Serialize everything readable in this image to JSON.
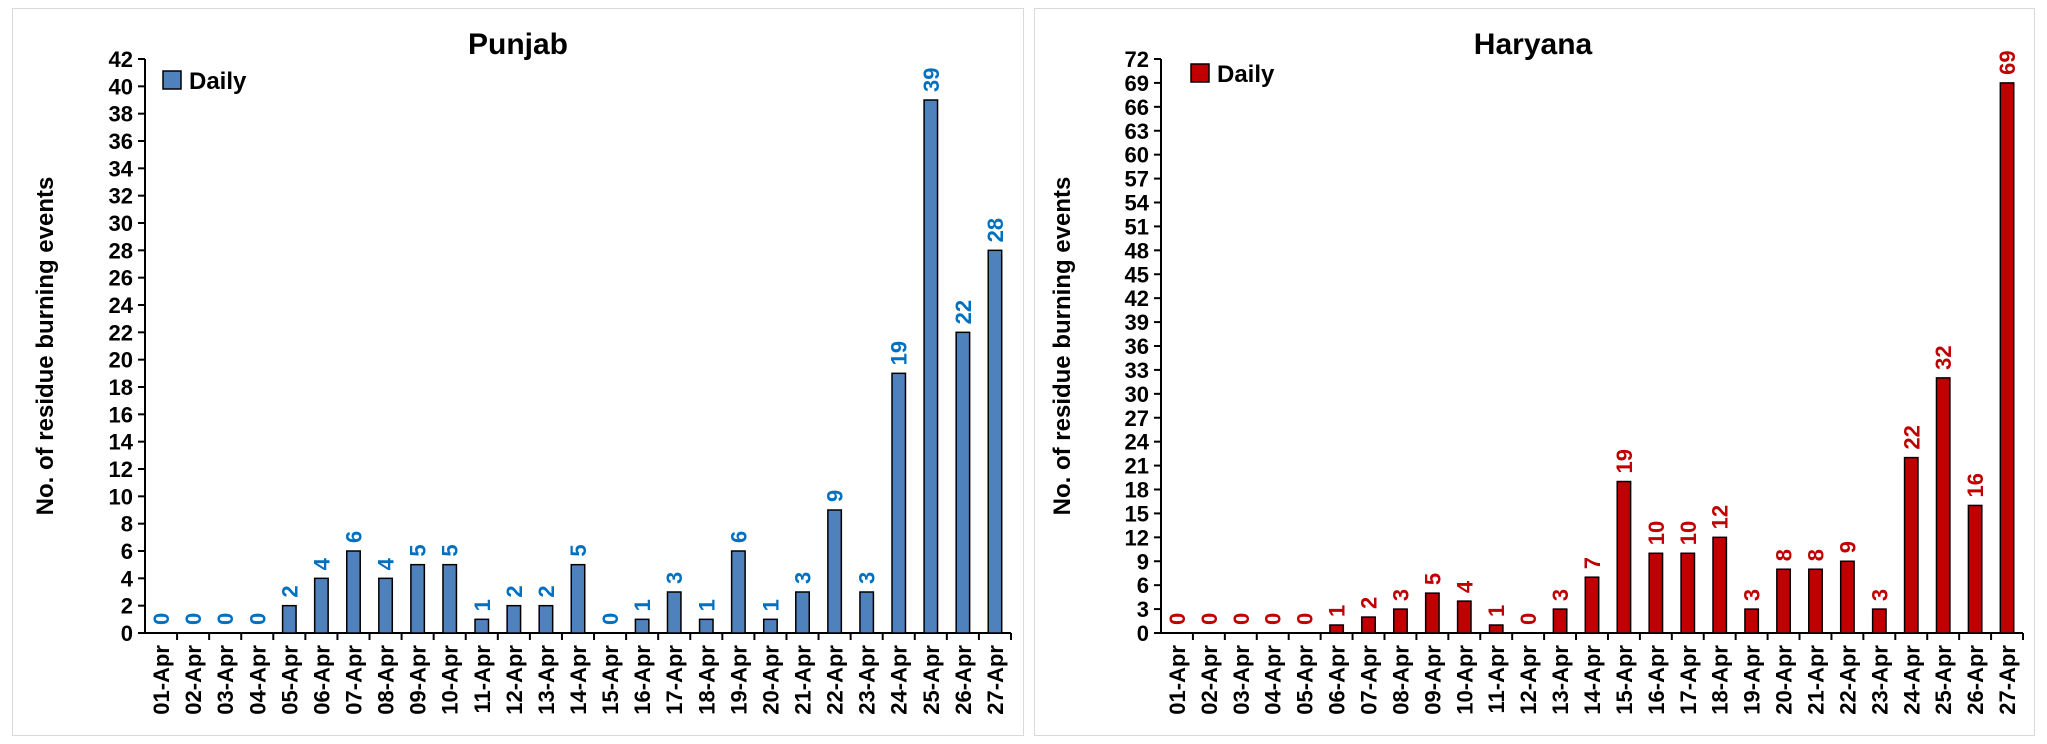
{
  "chart_data": [
    {
      "type": "bar",
      "title": "Punjab",
      "ylabel": "No. of residue burning events",
      "xlabel": "",
      "ylim": [
        0,
        42
      ],
      "ytick_step": 2,
      "categories": [
        "01-Apr",
        "02-Apr",
        "03-Apr",
        "04-Apr",
        "05-Apr",
        "06-Apr",
        "07-Apr",
        "08-Apr",
        "09-Apr",
        "10-Apr",
        "11-Apr",
        "12-Apr",
        "13-Apr",
        "14-Apr",
        "15-Apr",
        "16-Apr",
        "17-Apr",
        "18-Apr",
        "19-Apr",
        "20-Apr",
        "21-Apr",
        "22-Apr",
        "23-Apr",
        "24-Apr",
        "25-Apr",
        "26-Apr",
        "27-Apr"
      ],
      "series": [
        {
          "name": "Daily",
          "values": [
            0,
            0,
            0,
            0,
            2,
            4,
            6,
            4,
            5,
            5,
            1,
            2,
            2,
            5,
            0,
            1,
            3,
            1,
            6,
            1,
            3,
            9,
            3,
            19,
            39,
            22,
            28
          ]
        }
      ],
      "legend": "top-left",
      "bar_color": "#4f81bd",
      "label_color": "#0070c0",
      "grid": false
    },
    {
      "type": "bar",
      "title": "Haryana",
      "ylabel": "No. of residue burning events",
      "xlabel": "",
      "ylim": [
        0,
        72
      ],
      "ytick_step": 3,
      "categories": [
        "01-Apr",
        "02-Apr",
        "03-Apr",
        "04-Apr",
        "05-Apr",
        "06-Apr",
        "07-Apr",
        "08-Apr",
        "09-Apr",
        "10-Apr",
        "11-Apr",
        "12-Apr",
        "13-Apr",
        "14-Apr",
        "15-Apr",
        "16-Apr",
        "17-Apr",
        "18-Apr",
        "19-Apr",
        "20-Apr",
        "21-Apr",
        "22-Apr",
        "23-Apr",
        "24-Apr",
        "25-Apr",
        "26-Apr",
        "27-Apr"
      ],
      "series": [
        {
          "name": "Daily",
          "values": [
            0,
            0,
            0,
            0,
            0,
            1,
            2,
            3,
            5,
            4,
            1,
            0,
            3,
            7,
            19,
            10,
            10,
            12,
            3,
            8,
            8,
            9,
            3,
            22,
            32,
            16,
            69
          ]
        }
      ],
      "legend": "top-left",
      "bar_color": "#c00000",
      "label_color": "#c00000",
      "grid": false
    }
  ]
}
